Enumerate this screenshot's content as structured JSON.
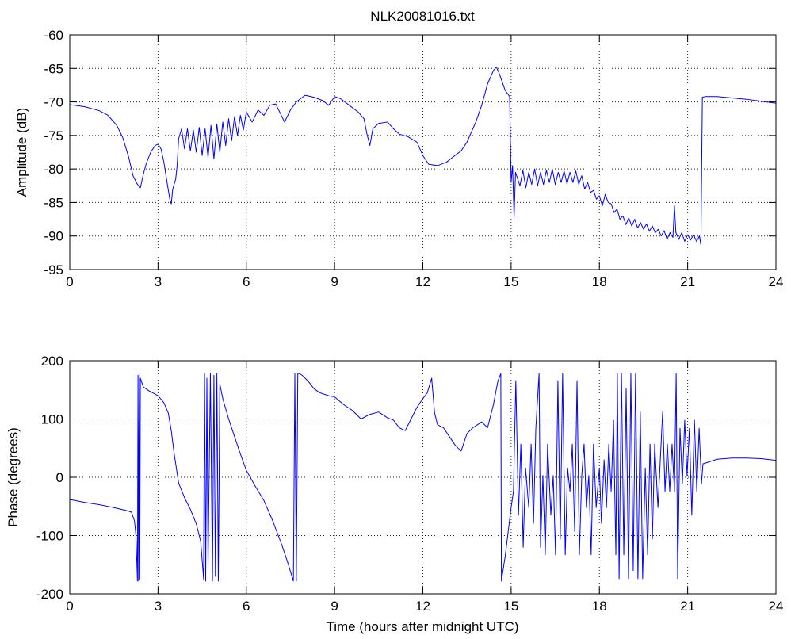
{
  "chart_data": [
    {
      "type": "line",
      "title": "NLK20081016.txt",
      "ylabel": "Amplitude (dB)",
      "xlim": [
        0,
        24
      ],
      "ylim": [
        -95,
        -60
      ],
      "xticks": [
        0,
        3,
        6,
        9,
        12,
        15,
        18,
        21,
        24
      ],
      "yticks": [
        -95,
        -90,
        -85,
        -80,
        -75,
        -70,
        -65,
        -60
      ],
      "grid": true,
      "line_color": "#0000ff",
      "points": [
        [
          0.0,
          -70.4
        ],
        [
          0.5,
          -70.7
        ],
        [
          1.0,
          -71.3
        ],
        [
          1.3,
          -72.0
        ],
        [
          1.6,
          -73.5
        ],
        [
          1.8,
          -75.3
        ],
        [
          2.0,
          -78.2
        ],
        [
          2.15,
          -81.0
        ],
        [
          2.3,
          -82.3
        ],
        [
          2.4,
          -82.8
        ],
        [
          2.5,
          -80.8
        ],
        [
          2.6,
          -79.2
        ],
        [
          2.75,
          -77.5
        ],
        [
          2.9,
          -76.5
        ],
        [
          3.0,
          -76.3
        ],
        [
          3.1,
          -77.0
        ],
        [
          3.2,
          -79.0
        ],
        [
          3.3,
          -81.8
        ],
        [
          3.4,
          -84.5
        ],
        [
          3.45,
          -85.2
        ],
        [
          3.5,
          -83.0
        ],
        [
          3.6,
          -81.5
        ],
        [
          3.65,
          -79.5
        ],
        [
          3.7,
          -75.5
        ],
        [
          3.8,
          -74.0
        ],
        [
          3.9,
          -77.0
        ],
        [
          4.0,
          -74.0
        ],
        [
          4.1,
          -77.3
        ],
        [
          4.2,
          -74.2
        ],
        [
          4.3,
          -77.5
        ],
        [
          4.4,
          -73.8
        ],
        [
          4.5,
          -78.0
        ],
        [
          4.6,
          -74.0
        ],
        [
          4.7,
          -78.3
        ],
        [
          4.8,
          -73.5
        ],
        [
          4.9,
          -78.5
        ],
        [
          5.0,
          -73.3
        ],
        [
          5.1,
          -77.5
        ],
        [
          5.2,
          -73.0
        ],
        [
          5.3,
          -76.5
        ],
        [
          5.4,
          -72.5
        ],
        [
          5.5,
          -75.8
        ],
        [
          5.6,
          -72.2
        ],
        [
          5.7,
          -75.0
        ],
        [
          5.8,
          -72.0
        ],
        [
          5.9,
          -74.2
        ],
        [
          6.0,
          -71.5
        ],
        [
          6.2,
          -73.0
        ],
        [
          6.4,
          -71.2
        ],
        [
          6.6,
          -72.0
        ],
        [
          6.8,
          -70.5
        ],
        [
          7.0,
          -70.3
        ],
        [
          7.1,
          -71.2
        ],
        [
          7.3,
          -73.0
        ],
        [
          7.5,
          -71.2
        ],
        [
          7.7,
          -70.0
        ],
        [
          8.0,
          -69.0
        ],
        [
          8.3,
          -69.3
        ],
        [
          8.6,
          -69.8
        ],
        [
          8.8,
          -70.5
        ],
        [
          9.0,
          -69.2
        ],
        [
          9.2,
          -69.5
        ],
        [
          9.5,
          -70.5
        ],
        [
          9.8,
          -71.5
        ],
        [
          10.0,
          -72.5
        ],
        [
          10.1,
          -74.8
        ],
        [
          10.2,
          -76.5
        ],
        [
          10.3,
          -74.0
        ],
        [
          10.5,
          -73.2
        ],
        [
          10.8,
          -73.0
        ],
        [
          11.0,
          -74.0
        ],
        [
          11.2,
          -74.8
        ],
        [
          11.5,
          -75.2
        ],
        [
          11.8,
          -76.0
        ],
        [
          12.0,
          -78.0
        ],
        [
          12.2,
          -79.3
        ],
        [
          12.5,
          -79.5
        ],
        [
          12.8,
          -79.0
        ],
        [
          13.0,
          -78.3
        ],
        [
          13.3,
          -77.3
        ],
        [
          13.5,
          -76.0
        ],
        [
          13.8,
          -73.0
        ],
        [
          14.0,
          -70.5
        ],
        [
          14.2,
          -67.3
        ],
        [
          14.4,
          -65.3
        ],
        [
          14.5,
          -64.8
        ],
        [
          14.6,
          -65.8
        ],
        [
          14.8,
          -68.3
        ],
        [
          14.95,
          -69.2
        ],
        [
          15.0,
          -82.0
        ],
        [
          15.05,
          -79.5
        ],
        [
          15.1,
          -87.3
        ],
        [
          15.15,
          -80.5
        ],
        [
          15.3,
          -82.5
        ],
        [
          15.4,
          -80.2
        ],
        [
          15.5,
          -82.8
        ],
        [
          15.6,
          -80.5
        ],
        [
          15.7,
          -82.3
        ],
        [
          15.8,
          -80.0
        ],
        [
          15.9,
          -82.5
        ],
        [
          16.0,
          -80.5
        ],
        [
          16.1,
          -82.3
        ],
        [
          16.2,
          -80.2
        ],
        [
          16.3,
          -82.0
        ],
        [
          16.4,
          -80.0
        ],
        [
          16.5,
          -82.3
        ],
        [
          16.6,
          -80.5
        ],
        [
          16.7,
          -82.0
        ],
        [
          16.8,
          -80.3
        ],
        [
          16.9,
          -82.2
        ],
        [
          17.0,
          -80.5
        ],
        [
          17.1,
          -82.0
        ],
        [
          17.2,
          -80.3
        ],
        [
          17.3,
          -82.3
        ],
        [
          17.4,
          -81.0
        ],
        [
          17.5,
          -83.0
        ],
        [
          17.6,
          -82.0
        ],
        [
          17.7,
          -83.5
        ],
        [
          17.8,
          -83.2
        ],
        [
          17.9,
          -84.5
        ],
        [
          18.0,
          -84.0
        ],
        [
          18.1,
          -85.5
        ],
        [
          18.2,
          -83.8
        ],
        [
          18.3,
          -85.0
        ],
        [
          18.4,
          -85.2
        ],
        [
          18.5,
          -86.5
        ],
        [
          18.6,
          -86.0
        ],
        [
          18.7,
          -87.5
        ],
        [
          18.8,
          -87.0
        ],
        [
          18.9,
          -88.3
        ],
        [
          19.0,
          -87.3
        ],
        [
          19.1,
          -88.5
        ],
        [
          19.2,
          -87.5
        ],
        [
          19.3,
          -88.8
        ],
        [
          19.4,
          -88.0
        ],
        [
          19.5,
          -89.0
        ],
        [
          19.6,
          -88.2
        ],
        [
          19.7,
          -89.3
        ],
        [
          19.8,
          -88.5
        ],
        [
          19.9,
          -89.5
        ],
        [
          20.0,
          -89.0
        ],
        [
          20.1,
          -90.0
        ],
        [
          20.2,
          -89.2
        ],
        [
          20.3,
          -90.5
        ],
        [
          20.4,
          -89.5
        ],
        [
          20.5,
          -90.2
        ],
        [
          20.55,
          -85.5
        ],
        [
          20.6,
          -89.5
        ],
        [
          20.7,
          -90.5
        ],
        [
          20.8,
          -89.5
        ],
        [
          20.9,
          -90.8
        ],
        [
          21.0,
          -89.8
        ],
        [
          21.1,
          -90.6
        ],
        [
          21.2,
          -89.8
        ],
        [
          21.3,
          -90.8
        ],
        [
          21.4,
          -90.0
        ],
        [
          21.45,
          -91.3
        ],
        [
          21.5,
          -69.3
        ],
        [
          21.6,
          -69.2
        ],
        [
          22.0,
          -69.2
        ],
        [
          22.5,
          -69.4
        ],
        [
          23.0,
          -69.6
        ],
        [
          23.5,
          -69.9
        ],
        [
          24.0,
          -70.2
        ]
      ]
    },
    {
      "type": "line",
      "xlabel": "Time (hours after midnight UTC)",
      "ylabel": "Phase (degrees)",
      "xlim": [
        0,
        24
      ],
      "ylim": [
        -200,
        200
      ],
      "xticks": [
        0,
        3,
        6,
        9,
        12,
        15,
        18,
        21,
        24
      ],
      "yticks": [
        -200,
        -100,
        0,
        100,
        200
      ],
      "grid": true,
      "line_color": "#0000ff",
      "points": [
        [
          0.0,
          -38
        ],
        [
          0.5,
          -43
        ],
        [
          1.0,
          -47
        ],
        [
          1.5,
          -52
        ],
        [
          2.0,
          -58
        ],
        [
          2.1,
          -60
        ],
        [
          2.2,
          -75
        ],
        [
          2.25,
          -100
        ],
        [
          2.3,
          -178
        ],
        [
          2.32,
          175
        ],
        [
          2.34,
          -178
        ],
        [
          2.36,
          178
        ],
        [
          2.38,
          -175
        ],
        [
          2.4,
          170
        ],
        [
          2.5,
          155
        ],
        [
          2.7,
          148
        ],
        [
          3.0,
          140
        ],
        [
          3.2,
          128
        ],
        [
          3.35,
          110
        ],
        [
          3.45,
          80
        ],
        [
          3.55,
          40
        ],
        [
          3.7,
          -10
        ],
        [
          3.9,
          -35
        ],
        [
          4.1,
          -55
        ],
        [
          4.3,
          -80
        ],
        [
          4.45,
          -110
        ],
        [
          4.55,
          -175
        ],
        [
          4.58,
          178
        ],
        [
          4.62,
          -178
        ],
        [
          4.66,
          170
        ],
        [
          4.7,
          -150
        ],
        [
          4.78,
          178
        ],
        [
          4.85,
          -178
        ],
        [
          4.9,
          175
        ],
        [
          4.95,
          -170
        ],
        [
          5.0,
          178
        ],
        [
          5.05,
          -178
        ],
        [
          5.1,
          160
        ],
        [
          5.2,
          135
        ],
        [
          5.4,
          100
        ],
        [
          5.6,
          70
        ],
        [
          5.8,
          40
        ],
        [
          6.0,
          12
        ],
        [
          6.3,
          -15
        ],
        [
          6.6,
          -40
        ],
        [
          6.9,
          -75
        ],
        [
          7.2,
          -115
        ],
        [
          7.4,
          -145
        ],
        [
          7.6,
          -178
        ],
        [
          7.65,
          178
        ],
        [
          7.7,
          -178
        ],
        [
          7.75,
          178
        ],
        [
          7.8,
          178
        ],
        [
          7.9,
          175
        ],
        [
          8.1,
          165
        ],
        [
          8.3,
          152
        ],
        [
          8.5,
          145
        ],
        [
          8.8,
          140
        ],
        [
          9.0,
          138
        ],
        [
          9.3,
          125
        ],
        [
          9.6,
          115
        ],
        [
          9.9,
          100
        ],
        [
          10.2,
          108
        ],
        [
          10.5,
          112
        ],
        [
          10.8,
          102
        ],
        [
          11.0,
          98
        ],
        [
          11.2,
          85
        ],
        [
          11.4,
          80
        ],
        [
          11.6,
          100
        ],
        [
          11.8,
          120
        ],
        [
          12.0,
          135
        ],
        [
          12.15,
          145
        ],
        [
          12.3,
          170
        ],
        [
          12.4,
          110
        ],
        [
          12.5,
          90
        ],
        [
          12.7,
          85
        ],
        [
          12.9,
          70
        ],
        [
          13.1,
          55
        ],
        [
          13.3,
          45
        ],
        [
          13.5,
          75
        ],
        [
          13.7,
          85
        ],
        [
          14.0,
          95
        ],
        [
          14.2,
          85
        ],
        [
          14.4,
          125
        ],
        [
          14.55,
          165
        ],
        [
          14.65,
          178
        ],
        [
          14.67,
          -178
        ],
        [
          14.8,
          -135
        ],
        [
          15.0,
          -52
        ],
        [
          15.08,
          -24
        ],
        [
          15.16,
          166
        ],
        [
          15.25,
          -65
        ],
        [
          15.33,
          57
        ],
        [
          15.41,
          -120
        ],
        [
          15.49,
          16
        ],
        [
          15.6,
          -52
        ],
        [
          15.68,
          57
        ],
        [
          15.76,
          -79
        ],
        [
          15.84,
          84
        ],
        [
          15.95,
          178
        ],
        [
          16.0,
          -120
        ],
        [
          16.08,
          3
        ],
        [
          16.16,
          -133
        ],
        [
          16.24,
          57
        ],
        [
          16.35,
          -65
        ],
        [
          16.43,
          3
        ],
        [
          16.51,
          -133
        ],
        [
          16.59,
          166
        ],
        [
          16.67,
          -106
        ],
        [
          16.75,
          178
        ],
        [
          16.84,
          -133
        ],
        [
          16.92,
          16
        ],
        [
          17.0,
          -24
        ],
        [
          17.08,
          57
        ],
        [
          17.16,
          -93
        ],
        [
          17.24,
          166
        ],
        [
          17.32,
          -133
        ],
        [
          17.4,
          3
        ],
        [
          17.48,
          57
        ],
        [
          17.56,
          -52
        ],
        [
          17.64,
          3
        ],
        [
          17.72,
          -133
        ],
        [
          17.8,
          57
        ],
        [
          17.89,
          -52
        ],
        [
          18.0,
          16
        ],
        [
          18.07,
          -79
        ],
        [
          18.16,
          30
        ],
        [
          18.24,
          -52
        ],
        [
          18.32,
          57
        ],
        [
          18.4,
          -24
        ],
        [
          18.48,
          98
        ],
        [
          18.56,
          -133
        ],
        [
          18.61,
          178
        ],
        [
          18.67,
          -174
        ],
        [
          18.75,
          178
        ],
        [
          18.83,
          -133
        ],
        [
          18.91,
          152
        ],
        [
          18.99,
          -174
        ],
        [
          19.07,
          178
        ],
        [
          19.15,
          -160
        ],
        [
          19.23,
          178
        ],
        [
          19.31,
          -174
        ],
        [
          19.39,
          112
        ],
        [
          19.47,
          -174
        ],
        [
          19.56,
          16
        ],
        [
          19.64,
          -133
        ],
        [
          19.72,
          57
        ],
        [
          19.8,
          -106
        ],
        [
          19.88,
          57
        ],
        [
          19.99,
          -52
        ],
        [
          20.07,
          30
        ],
        [
          20.15,
          112
        ],
        [
          20.23,
          -24
        ],
        [
          20.31,
          57
        ],
        [
          20.39,
          -24
        ],
        [
          20.47,
          57
        ],
        [
          20.55,
          -24
        ],
        [
          20.61,
          178
        ],
        [
          20.66,
          -174
        ],
        [
          20.74,
          84
        ],
        [
          20.82,
          -11
        ],
        [
          20.9,
          98
        ],
        [
          20.98,
          3
        ],
        [
          21.06,
          84
        ],
        [
          21.14,
          -65
        ],
        [
          21.23,
          98
        ],
        [
          21.31,
          -24
        ],
        [
          21.39,
          84
        ],
        [
          21.47,
          -11
        ],
        [
          21.52,
          23
        ],
        [
          22.0,
          31
        ],
        [
          22.5,
          33
        ],
        [
          23.0,
          33
        ],
        [
          23.5,
          32
        ],
        [
          24.0,
          29
        ]
      ]
    }
  ]
}
